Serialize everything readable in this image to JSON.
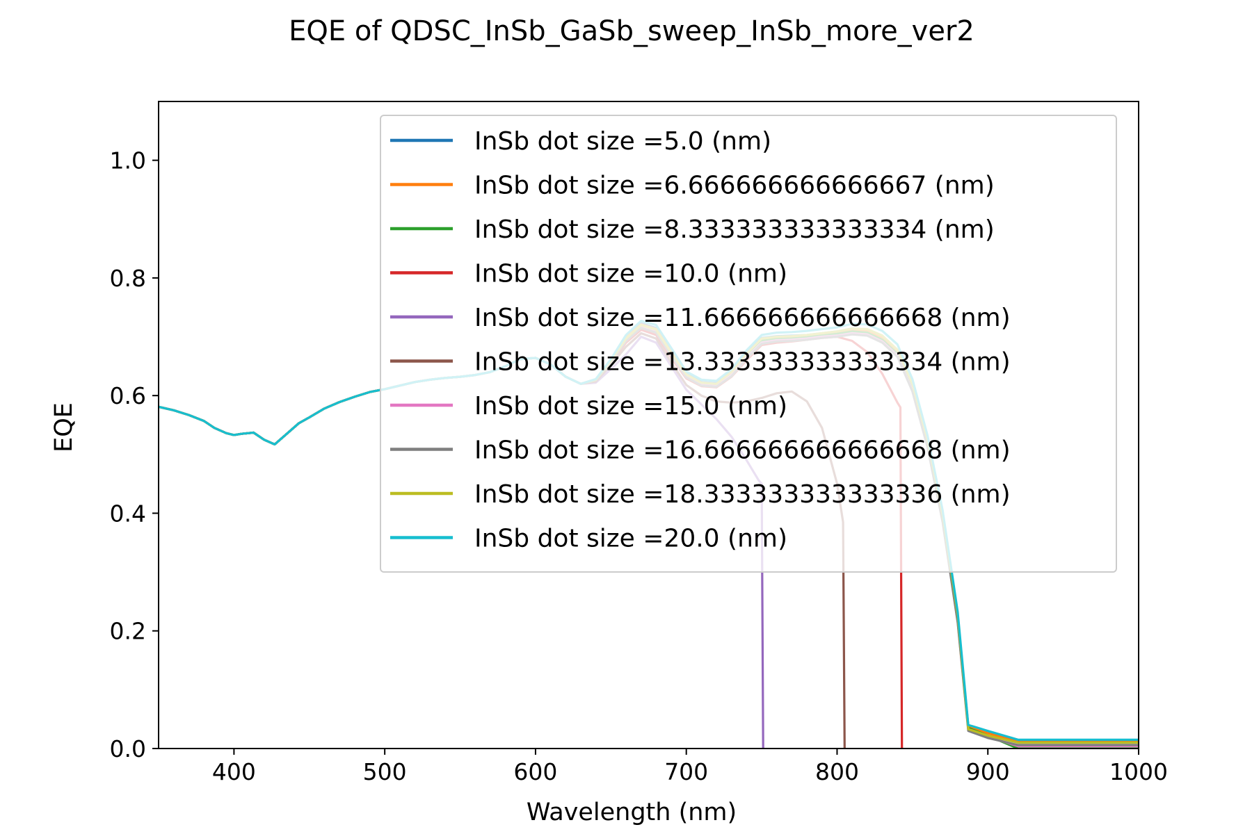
{
  "chart_data": {
    "type": "line",
    "title": "EQE of  QDSC_InSb_GaSb_sweep_InSb_more_ver2",
    "xlabel": "Wavelength (nm)",
    "ylabel": "EQE",
    "xlim": [
      350,
      1000
    ],
    "ylim": [
      0,
      1.1
    ],
    "xticks": [
      400,
      500,
      600,
      700,
      800,
      900,
      1000
    ],
    "xtick_labels": [
      "400",
      "500",
      "600",
      "700",
      "800",
      "900",
      "1000"
    ],
    "yticks": [
      0,
      0.2,
      0.4,
      0.6,
      0.8,
      1.0
    ],
    "ytick_labels": [
      "0.0",
      "0.2",
      "0.4",
      "0.6",
      "0.8",
      "1.0"
    ],
    "grid": false,
    "legend": "top-right",
    "common_x": [
      350,
      360,
      370,
      380,
      387,
      395,
      400,
      405,
      413,
      420,
      427,
      435,
      443,
      450,
      460,
      470,
      480,
      490,
      500,
      510,
      520,
      530,
      540,
      550,
      560,
      570,
      580,
      590,
      600,
      610,
      620,
      630
    ],
    "common_y": [
      0.581,
      0.575,
      0.567,
      0.557,
      0.545,
      0.536,
      0.533,
      0.535,
      0.537,
      0.525,
      0.517,
      0.535,
      0.553,
      0.563,
      0.578,
      0.589,
      0.598,
      0.606,
      0.611,
      0.617,
      0.623,
      0.627,
      0.63,
      0.632,
      0.635,
      0.64,
      0.65,
      0.662,
      0.664,
      0.653,
      0.632,
      0.62
    ],
    "series": [
      {
        "name": "InSb dot size =5.0 (nm)",
        "color": "#1f77b4",
        "x": [
          640,
          650,
          660,
          670,
          680,
          690,
          700,
          710,
          720,
          730,
          740,
          750,
          760,
          770,
          780,
          790,
          800,
          810,
          820,
          830,
          840,
          850,
          860,
          870,
          880,
          887,
          900,
          920,
          940,
          960,
          980,
          1000
        ],
        "y": [
          0.627,
          0.66,
          0.7,
          0.723,
          0.715,
          0.676,
          0.637,
          0.623,
          0.621,
          0.641,
          0.672,
          0.698,
          0.701,
          0.702,
          0.703,
          0.706,
          0.709,
          0.714,
          0.712,
          0.7,
          0.676,
          0.617,
          0.522,
          0.395,
          0.224,
          0.038,
          0.027,
          0.012,
          0.012,
          0.012,
          0.012,
          0.012
        ]
      },
      {
        "name": "InSb dot size =6.666666666666667 (nm)",
        "color": "#ff7f0e",
        "x": [
          640,
          650,
          660,
          670,
          680,
          690,
          700,
          710,
          720,
          730,
          740,
          750,
          760,
          770,
          780,
          790,
          800,
          810,
          820,
          830,
          840,
          850,
          860,
          870,
          880,
          887,
          900,
          920,
          940,
          960,
          980,
          1000
        ],
        "y": [
          0.627,
          0.66,
          0.698,
          0.721,
          0.713,
          0.674,
          0.635,
          0.621,
          0.619,
          0.639,
          0.67,
          0.696,
          0.699,
          0.7,
          0.701,
          0.704,
          0.707,
          0.712,
          0.71,
          0.698,
          0.674,
          0.615,
          0.52,
          0.393,
          0.222,
          0.037,
          0.026,
          0.011,
          0.011,
          0.011,
          0.011,
          0.011
        ]
      },
      {
        "name": "InSb dot size =8.333333333333334 (nm)",
        "color": "#2ca02c",
        "x": [
          640,
          650,
          660,
          670,
          680,
          690,
          700,
          710,
          720,
          730,
          740,
          750,
          760,
          770,
          780,
          790,
          800,
          810,
          820,
          830,
          840,
          850,
          860,
          870,
          880,
          887,
          900,
          920,
          940,
          960,
          980,
          1000
        ],
        "y": [
          0.628,
          0.659,
          0.697,
          0.719,
          0.711,
          0.672,
          0.634,
          0.62,
          0.618,
          0.637,
          0.667,
          0.693,
          0.696,
          0.697,
          0.699,
          0.702,
          0.705,
          0.709,
          0.707,
          0.695,
          0.671,
          0.612,
          0.517,
          0.39,
          0.219,
          0.035,
          0.022,
          0.0,
          0.0,
          0.0,
          0.0,
          0.0
        ]
      },
      {
        "name": "InSb dot size =10.0 (nm)",
        "color": "#d62728",
        "x": [
          640,
          650,
          660,
          670,
          680,
          690,
          700,
          710,
          720,
          730,
          740,
          750,
          760,
          770,
          780,
          790,
          800,
          810,
          820,
          830,
          840,
          842,
          843
        ],
        "y": [
          0.625,
          0.655,
          0.69,
          0.712,
          0.703,
          0.664,
          0.629,
          0.616,
          0.614,
          0.632,
          0.66,
          0.686,
          0.69,
          0.692,
          0.695,
          0.698,
          0.7,
          0.693,
          0.674,
          0.637,
          0.588,
          0.58,
          0.0
        ]
      },
      {
        "name": "InSb dot size =11.666666666666668 (nm)",
        "color": "#9467bd",
        "x": [
          640,
          650,
          660,
          670,
          680,
          690,
          700,
          710,
          720,
          730,
          740,
          748,
          750,
          751
        ],
        "y": [
          0.622,
          0.645,
          0.67,
          0.7,
          0.69,
          0.65,
          0.61,
          0.585,
          0.56,
          0.53,
          0.49,
          0.456,
          0.45,
          0.0
        ]
      },
      {
        "name": "InSb dot size =13.333333333333334 (nm)",
        "color": "#8c564b",
        "x": [
          640,
          650,
          660,
          670,
          680,
          690,
          700,
          710,
          720,
          730,
          740,
          750,
          760,
          770,
          780,
          790,
          800,
          804,
          805
        ],
        "y": [
          0.624,
          0.652,
          0.683,
          0.706,
          0.697,
          0.656,
          0.618,
          0.6,
          0.59,
          0.588,
          0.59,
          0.596,
          0.604,
          0.607,
          0.59,
          0.545,
          0.45,
          0.385,
          0.0
        ]
      },
      {
        "name": "InSb dot size =15.0 (nm)",
        "color": "#e377c2",
        "x": [
          640,
          650,
          660,
          670,
          680,
          690,
          700,
          710,
          720,
          730,
          740,
          750,
          760,
          770,
          780,
          790,
          800,
          810,
          820,
          830,
          840,
          850,
          860,
          870,
          880,
          887,
          900,
          920,
          940,
          960,
          980,
          1000
        ],
        "y": [
          0.626,
          0.658,
          0.695,
          0.717,
          0.709,
          0.67,
          0.632,
          0.618,
          0.616,
          0.635,
          0.665,
          0.69,
          0.694,
          0.695,
          0.697,
          0.7,
          0.702,
          0.706,
          0.704,
          0.692,
          0.668,
          0.609,
          0.514,
          0.387,
          0.216,
          0.032,
          0.02,
          0.004,
          0.004,
          0.004,
          0.004,
          0.004
        ]
      },
      {
        "name": "InSb dot size =16.666666666666668 (nm)",
        "color": "#7f7f7f",
        "x": [
          640,
          650,
          660,
          670,
          680,
          690,
          700,
          710,
          720,
          730,
          740,
          750,
          760,
          770,
          780,
          790,
          800,
          810,
          820,
          830,
          840,
          850,
          860,
          870,
          880,
          887,
          900,
          920,
          940,
          960,
          980,
          1000
        ],
        "y": [
          0.626,
          0.657,
          0.693,
          0.715,
          0.707,
          0.668,
          0.631,
          0.617,
          0.615,
          0.633,
          0.663,
          0.688,
          0.692,
          0.693,
          0.695,
          0.698,
          0.7,
          0.704,
          0.702,
          0.69,
          0.666,
          0.607,
          0.512,
          0.385,
          0.214,
          0.03,
          0.018,
          0.006,
          0.006,
          0.006,
          0.006,
          0.006
        ]
      },
      {
        "name": "InSb dot size =18.333333333333336 (nm)",
        "color": "#bcbd22",
        "x": [
          640,
          650,
          660,
          670,
          680,
          690,
          700,
          710,
          720,
          730,
          740,
          750,
          760,
          770,
          780,
          790,
          800,
          810,
          820,
          830,
          840,
          850,
          860,
          870,
          880,
          887,
          900,
          920,
          940,
          960,
          980,
          1000
        ],
        "y": [
          0.627,
          0.659,
          0.697,
          0.72,
          0.712,
          0.673,
          0.636,
          0.622,
          0.62,
          0.64,
          0.671,
          0.697,
          0.7,
          0.701,
          0.703,
          0.706,
          0.709,
          0.714,
          0.713,
          0.702,
          0.678,
          0.62,
          0.525,
          0.398,
          0.226,
          0.033,
          0.022,
          0.01,
          0.01,
          0.01,
          0.01,
          0.01
        ]
      },
      {
        "name": "InSb dot size =20.0 (nm)",
        "color": "#17becf",
        "x": [
          640,
          650,
          660,
          670,
          680,
          690,
          700,
          710,
          720,
          730,
          740,
          750,
          760,
          770,
          780,
          790,
          800,
          810,
          820,
          830,
          840,
          850,
          860,
          870,
          880,
          887,
          900,
          920,
          940,
          960,
          980,
          1000
        ],
        "y": [
          0.628,
          0.662,
          0.703,
          0.727,
          0.72,
          0.681,
          0.641,
          0.627,
          0.625,
          0.645,
          0.677,
          0.703,
          0.707,
          0.708,
          0.71,
          0.713,
          0.716,
          0.722,
          0.721,
          0.71,
          0.687,
          0.628,
          0.532,
          0.405,
          0.232,
          0.04,
          0.03,
          0.015,
          0.015,
          0.015,
          0.015,
          0.015
        ]
      }
    ]
  }
}
